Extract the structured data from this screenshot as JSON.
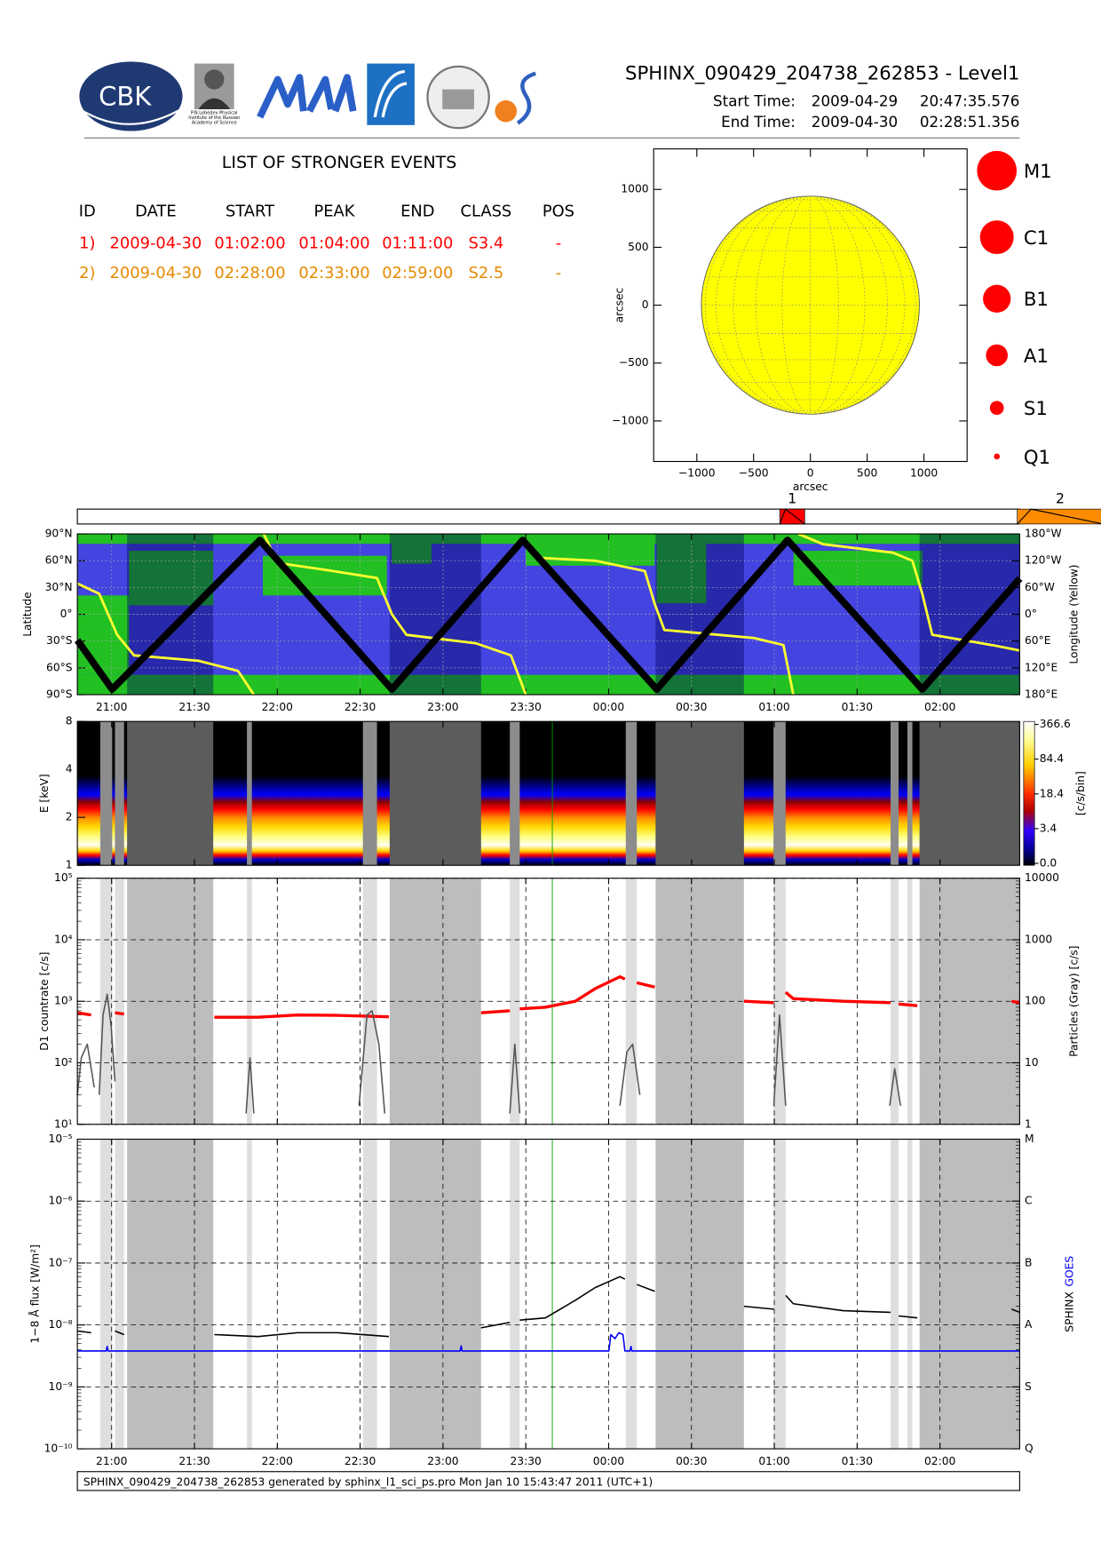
{
  "header": {
    "title": "SPHINX_090429_204738_262853 - Level1",
    "start_label": "Start Time:",
    "start_date": "2009-04-29",
    "start_time": "20:47:35.576",
    "end_label": "End Time:",
    "end_date": "2009-04-30",
    "end_time": "02:28:51.356"
  },
  "logos": {
    "cbk": "CBK",
    "lebedev": [
      "P.N.Lebedev Physical",
      "Institute of the Russian",
      "Academy of Science"
    ]
  },
  "events": {
    "title": "LIST OF STRONGER EVENTS",
    "columns": [
      "ID",
      "DATE",
      "START",
      "PEAK",
      "END",
      "CLASS",
      "POS"
    ],
    "rows": [
      [
        "1)",
        "2009-04-30",
        "01:02:00",
        "01:04:00",
        "01:11:00",
        "S3.4",
        "-"
      ],
      [
        "2)",
        "2009-04-30",
        "02:28:00",
        "02:33:00",
        "02:59:00",
        "S2.5",
        "-"
      ]
    ],
    "colors": [
      "#ff0000",
      "#e68a00"
    ]
  },
  "time_axis": {
    "xlim": [
      1247.59,
      1588.86
    ],
    "xticks": [
      {
        "value": 1260,
        "label": "21:00"
      },
      {
        "value": 1290,
        "label": "21:30"
      },
      {
        "value": 1320,
        "label": "22:00"
      },
      {
        "value": 1350,
        "label": "22:30"
      },
      {
        "value": 1380,
        "label": "23:00"
      },
      {
        "value": 1410,
        "label": "23:30"
      },
      {
        "value": 1440,
        "label": "00:00"
      },
      {
        "value": 1470,
        "label": "00:30"
      },
      {
        "value": 1500,
        "label": "01:00"
      },
      {
        "value": 1530,
        "label": "01:30"
      },
      {
        "value": 1560,
        "label": "02:00"
      }
    ]
  },
  "data_gaps": {
    "dark": [
      [
        1265.6,
        1296.8
      ],
      [
        1360.7,
        1393.8
      ],
      [
        1457.0,
        1489.0
      ],
      [
        1552.6,
        1588.9
      ]
    ],
    "light": [
      [
        1255.9,
        1260.2
      ],
      [
        1261.2,
        1264.5
      ],
      [
        1309.0,
        1310.8
      ],
      [
        1351.0,
        1356.1
      ],
      [
        1404.2,
        1407.8
      ],
      [
        1446.2,
        1450.2
      ],
      [
        1499.7,
        1504.1
      ],
      [
        1542.1,
        1545.0
      ],
      [
        1548.2,
        1550.0
      ]
    ]
  },
  "reference_line": {
    "x": 1419.6,
    "color": "#00a000"
  },
  "chart_data": [
    {
      "type": "disk",
      "xlabel": "arcsec",
      "ylabel": "arcsec",
      "xlim": [
        -1380,
        1380
      ],
      "ylim": [
        -1350,
        1350
      ],
      "xticks": [
        {
          "value": -1000,
          "label": "−1000"
        },
        {
          "value": -500,
          "label": "−500"
        },
        0,
        500,
        1000
      ],
      "yticks": [
        {
          "value": -1000,
          "label": "−1000"
        },
        {
          "value": -500,
          "label": "−500"
        },
        0,
        500,
        1000
      ],
      "radius": 960,
      "color": "#ffff00",
      "legend": [
        "M1",
        "C1",
        "B1",
        "A1",
        "S1",
        "Q1"
      ],
      "legend_color": "#ff0000"
    },
    {
      "type": "timeline",
      "labels": [
        "1",
        "2"
      ],
      "starts": [
        1502,
        1588
      ],
      "peaks": [
        1504,
        1593
      ],
      "ends": [
        1511,
        1619
      ],
      "colors": [
        "#ff0000",
        "#ff8c00"
      ]
    },
    {
      "type": "track",
      "ylabel": "Latitude",
      "y2label": "Longitude (Yellow)",
      "ylim": [
        -90,
        90
      ],
      "yticks": [
        {
          "value": 90,
          "label": "90°N"
        },
        {
          "value": 60,
          "label": "60°N"
        },
        {
          "value": 30,
          "label": "30°N"
        },
        {
          "value": 0,
          "label": "0°"
        },
        {
          "value": -30,
          "label": "30°S"
        },
        {
          "value": -60,
          "label": "60°S"
        },
        {
          "value": -90,
          "label": "90°S"
        }
      ],
      "y2lim": [
        180,
        -180
      ],
      "y2ticks": [
        {
          "value": -180,
          "label": "180°W"
        },
        {
          "value": -120,
          "label": "120°W"
        },
        {
          "value": -60,
          "label": "60°W"
        },
        {
          "value": 0,
          "label": "0°"
        },
        {
          "value": 60,
          "label": "60°E"
        },
        {
          "value": 120,
          "label": "120°E"
        },
        {
          "value": 180,
          "label": "180°E"
        }
      ],
      "grid": true,
      "series": [
        {
          "color": "#ffff30",
          "axis": "y2",
          "x": [
            1247.6,
            1255.5,
            1262.0,
            1268.1,
            1291.4,
            1305.8,
            1311.5,
            null,
            1315.1,
            1320.2,
            1338.1,
            1356.1,
            1361.5,
            1366.8,
            1392.0,
            1404.6,
            1410.0,
            null,
            1413.5,
            1435.1,
            1453.1,
            1456.7,
            1460.2,
            1492.6,
            1503.3,
            1506.9,
            null,
            1508.7,
            1517.7,
            1542.9,
            1550.0,
            1553.6,
            1557.2,
            1578.8,
            1588.9
          ],
          "values": [
            -69,
            -46,
            46,
            92,
            104,
            127,
            180,
            null,
            -180,
            -115,
            -99,
            -81,
            0,
            46,
            65,
            92,
            180,
            null,
            -127,
            -120,
            -97,
            -23,
            35,
            53,
            69,
            180,
            null,
            -180,
            -157,
            -138,
            -120,
            -46,
            46,
            69,
            81
          ]
        },
        {
          "color": "#000000",
          "x": [
            1247.6,
            1260.2,
            1313.7,
            1361.5,
            1408.9,
            1457.4,
            1504.8,
            1553.6,
            1588.9
          ],
          "values": [
            -29,
            -84,
            83,
            -84,
            83,
            -84,
            83,
            -84,
            40
          ]
        }
      ]
    },
    {
      "type": "spectrogram",
      "ylabel": "E [keV]",
      "ylim": [
        1,
        8
      ],
      "yticks": [
        1,
        2,
        4,
        8
      ],
      "log": true,
      "colorbar_label": "[c/s/bin]",
      "colorbar_ticks": [
        366.6,
        84.4,
        18.4,
        3.4,
        {
          "value": 0,
          "label": "0.0"
        }
      ]
    },
    {
      "type": "logline",
      "ylabel": "D1 countrate [c/s]",
      "y2label": "Particles (Gray) [c/s]",
      "log": true,
      "grid": true,
      "ylim": [
        10,
        100000
      ],
      "yticks": [
        {
          "value": 10,
          "label": "10¹"
        },
        {
          "value": 100,
          "label": "10²"
        },
        {
          "value": 1000,
          "label": "10³"
        },
        {
          "value": 10000,
          "label": "10⁴"
        },
        {
          "value": 100000,
          "label": "10⁵"
        }
      ],
      "y2lim": [
        1,
        10000
      ],
      "y2ticks": [
        1,
        10,
        100,
        1000,
        10000
      ],
      "series": [
        {
          "color": "#ff0000",
          "x": [
            1247.6,
            1252.6,
            null,
            1261.2,
            1264.5,
            null,
            1297.2,
            1313.0,
            1327.3,
            1341.7,
            1360.4,
            null,
            1393.8,
            1404.2,
            null,
            1407.8,
            1417.1,
            1427.9,
            1435.1,
            1444.1,
            1445.9,
            null,
            1450.2,
            1456.7,
            null,
            1489.0,
            1499.8,
            null,
            1504.1,
            1506.9,
            1524.9,
            1542.1,
            null,
            1545.0,
            1551.8,
            null,
            1585.9,
            1588.9
          ],
          "values": [
            650,
            600,
            null,
            650,
            620,
            null,
            550,
            550,
            600,
            590,
            560,
            null,
            650,
            700,
            null,
            750,
            800,
            1000,
            1600,
            2500,
            2300,
            null,
            2000,
            1700,
            null,
            1000,
            950,
            null,
            1400,
            1100,
            1000,
            950,
            null,
            900,
            850,
            null,
            1000,
            950
          ]
        },
        {
          "color": "#555555",
          "axis": "y2",
          "x": [
            1247.6,
            1249.0,
            1251.2,
            1253.7,
            null,
            1255.5,
            1256.9,
            1258.4,
            1259.8,
            1261.2,
            null,
            1308.7,
            1310.1,
            1311.5,
            null,
            1349.6,
            1352.5,
            1354.3,
            1356.8,
            1358.9,
            null,
            1404.2,
            1406.0,
            1407.8,
            null,
            1444.1,
            1446.6,
            1448.7,
            1451.3,
            null,
            1499.8,
            1501.9,
            1504.1,
            null,
            1541.8,
            1543.6,
            1545.7
          ],
          "values": [
            3,
            12,
            20,
            4,
            null,
            3,
            60,
            130,
            40,
            5,
            null,
            1.5,
            12,
            1.5,
            null,
            2,
            60,
            70,
            20,
            1.5,
            null,
            1.5,
            20,
            1.5,
            null,
            2,
            15,
            20,
            3,
            null,
            2,
            60,
            2,
            null,
            2,
            8,
            2
          ]
        }
      ]
    },
    {
      "type": "logline",
      "ylabel": "1−8 Å flux [W/m²]",
      "log": true,
      "grid": true,
      "ylim": [
        1e-10,
        1e-05
      ],
      "yticks": [
        {
          "value": 1e-10,
          "label": "10⁻¹⁰"
        },
        {
          "value": 1e-09,
          "label": "10⁻⁹"
        },
        {
          "value": 1e-08,
          "label": "10⁻⁸"
        },
        {
          "value": 1e-07,
          "label": "10⁻⁷"
        },
        {
          "value": 1e-06,
          "label": "10⁻⁶"
        },
        {
          "value": 1e-05,
          "label": "10⁻⁵"
        }
      ],
      "y2lim": [
        1e-10,
        1e-05
      ],
      "y2ticks": [
        {
          "value": 1e-10,
          "label": "Q"
        },
        {
          "value": 1e-09,
          "label": "S"
        },
        {
          "value": 1e-08,
          "label": "A"
        },
        {
          "value": 1e-07,
          "label": "B"
        },
        {
          "value": 1e-06,
          "label": "C"
        },
        {
          "value": 1e-05,
          "label": "M"
        }
      ],
      "series": [
        {
          "name": "SPHINX",
          "color": "#000000",
          "x": [
            1247.6,
            1252.6,
            null,
            1261.2,
            1264.5,
            null,
            1297.2,
            1313.0,
            1327.3,
            1341.7,
            1360.4,
            null,
            1393.8,
            1404.2,
            null,
            1407.8,
            1417.1,
            1427.9,
            1435.1,
            1444.1,
            1445.9,
            null,
            1450.2,
            1456.7,
            null,
            1489.0,
            1499.8,
            null,
            1504.1,
            1506.9,
            1524.9,
            1542.1,
            null,
            1545.0,
            1551.8,
            null,
            1585.9,
            1588.9
          ],
          "values": [
            8e-09,
            7.5e-09,
            null,
            8e-09,
            7e-09,
            null,
            7e-09,
            6.5e-09,
            7.5e-09,
            7.5e-09,
            6.5e-09,
            null,
            9e-09,
            1.1e-08,
            null,
            1.2e-08,
            1.3e-08,
            2.5e-08,
            4e-08,
            6e-08,
            5.5e-08,
            null,
            4.5e-08,
            3.5e-08,
            null,
            2e-08,
            1.8e-08,
            null,
            3e-08,
            2.2e-08,
            1.7e-08,
            1.6e-08,
            null,
            1.4e-08,
            1.3e-08,
            null,
            1.8e-08,
            1.6e-08
          ]
        },
        {
          "name": "GOES",
          "color": "#0000ff",
          "x": [
            1247.6,
            1258.0,
            1258.4,
            1258.7,
            1386.2,
            1386.6,
            1386.9,
            1440.1,
            1440.8,
            1442.3,
            1443.7,
            1445.2,
            1445.9,
            1447.7,
            1448.1,
            1448.4,
            1588.9
          ],
          "values": [
            3.8e-09,
            3.8e-09,
            4.5e-09,
            3.8e-09,
            3.8e-09,
            4.6e-09,
            3.8e-09,
            3.8e-09,
            7e-09,
            6e-09,
            7.5e-09,
            7e-09,
            3.8e-09,
            3.8e-09,
            4.5e-09,
            3.8e-09,
            3.8e-09
          ]
        }
      ]
    }
  ],
  "footer": "SPHINX_090429_204738_262853 generated by sphinx_l1_sci_ps.pro Mon Jan 10 15:43:47 2011 (UTC+1)"
}
